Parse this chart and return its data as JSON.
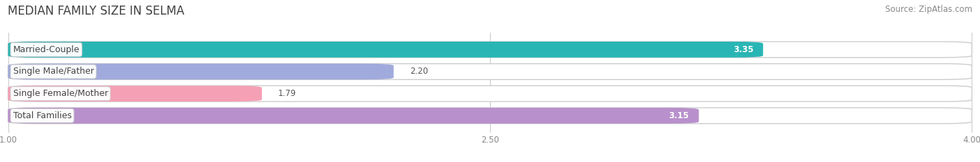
{
  "title": "MEDIAN FAMILY SIZE IN SELMA",
  "source": "Source: ZipAtlas.com",
  "categories": [
    "Married-Couple",
    "Single Male/Father",
    "Single Female/Mother",
    "Total Families"
  ],
  "values": [
    3.35,
    2.2,
    1.79,
    3.15
  ],
  "bar_colors": [
    "#2ab5b5",
    "#a0aadd",
    "#f5a0b5",
    "#b890cc"
  ],
  "xmin": 1.0,
  "xmax": 4.0,
  "xticks": [
    1.0,
    2.5,
    4.0
  ],
  "background_color": "#ffffff",
  "bar_height": 0.72,
  "bar_gap": 0.28,
  "title_fontsize": 12,
  "label_fontsize": 9,
  "value_fontsize": 8.5,
  "source_fontsize": 8.5,
  "title_color": "#404040",
  "source_color": "#888888",
  "label_text_color": "#444444",
  "tick_color": "#aaaaaa",
  "grid_color": "#cccccc"
}
